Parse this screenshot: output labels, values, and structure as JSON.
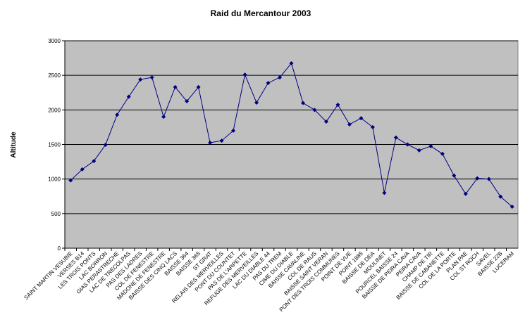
{
  "chart_data": {
    "type": "line",
    "title": "Raid du Mercantour 2003",
    "y_label": "Altitude",
    "categories": [
      "SAINT MARTIN VESUBIE",
      "VERSES B14",
      "LES TROIS PONTS",
      "LAC BORRON",
      "GIAS PERASTRECHE",
      "LAC DE TRECOLPAS",
      "PAS DES LADRES",
      "COL DE FENESTRE",
      "MADONE DE FENESTRE",
      "BAISSE DES CINQ LACS",
      "BAISSE 364",
      "BAISSE 365",
      "ST GRAT",
      "RELAIS DES MERVEILLES",
      "PONT DU COUNTET",
      "PAS DE L'ARPETTE",
      "REFUGE DES MERVEILLES",
      "LAC DU DIABLE 44",
      "PAS DU TREM",
      "CIME DU DIABLE",
      "BAISSE CAVALINE",
      "COL DE RAUS",
      "BAISSE SAINT VERAN",
      "PONT DES TROIS COMMUNES",
      "POINT DE VUE",
      "POINT 1885",
      "BAISSE DE DEA",
      "MOULINET",
      "POURCEL BAISSE 24",
      "BAISSE DE PEIRA CAVA",
      "PEIRA CAVA",
      "CHAMP DE TIR",
      "BAISSE DE CABANETTE",
      "COL DE LA PORTE",
      "PLAN PAE",
      "COL ST ROCH",
      "SAVEL",
      "BAISSE 22B",
      "LUCERAM"
    ],
    "series": [
      {
        "name": "Altitude",
        "color": "#000080",
        "values": [
          980,
          1140,
          1260,
          1495,
          1930,
          2190,
          2440,
          2470,
          1900,
          2330,
          2125,
          2330,
          1525,
          1555,
          1700,
          2510,
          2105,
          2390,
          2470,
          2675,
          2100,
          2000,
          1830,
          2075,
          1790,
          1880,
          1750,
          800,
          1600,
          1500,
          1415,
          1475,
          1365,
          1050,
          785,
          1010,
          1000,
          745,
          600
        ]
      }
    ],
    "ylim": [
      0,
      3000
    ],
    "yticks": [
      0,
      500,
      1000,
      1500,
      2000,
      2500,
      3000
    ],
    "grid": true
  }
}
